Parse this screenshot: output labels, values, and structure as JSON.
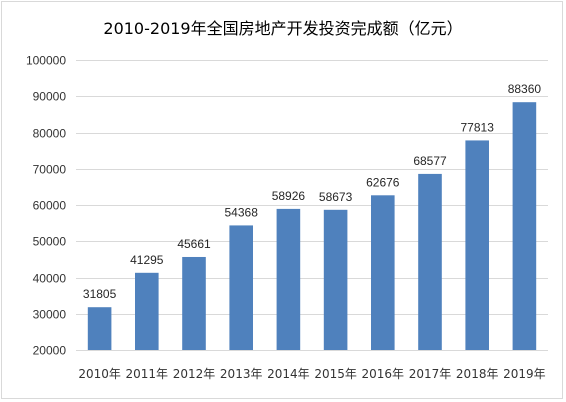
{
  "chart_data": {
    "type": "bar",
    "title": "2010-2019年全国房地产开发投资完成额（亿元）",
    "xlabel": "",
    "ylabel": "",
    "categories": [
      "2010年",
      "2011年",
      "2012年",
      "2013年",
      "2014年",
      "2015年",
      "2016年",
      "2017年",
      "2018年",
      "2019年"
    ],
    "values": [
      31805,
      41295,
      45661,
      54368,
      58926,
      58673,
      62676,
      68577,
      77813,
      88360
    ],
    "data_labels": [
      "31805",
      "41295",
      "45661",
      "54368",
      "58926",
      "58673",
      "62676",
      "68577",
      "77813",
      "88360"
    ],
    "ylim": [
      20000,
      100000
    ],
    "yticks": [
      20000,
      30000,
      40000,
      50000,
      60000,
      70000,
      80000,
      90000,
      100000
    ],
    "ytick_labels": [
      "20000",
      "30000",
      "40000",
      "50000",
      "60000",
      "70000",
      "80000",
      "90000",
      "100000"
    ],
    "grid": true,
    "legend": "none",
    "bar_color": "#4f81bd",
    "grid_color": "#d9d9d9"
  }
}
